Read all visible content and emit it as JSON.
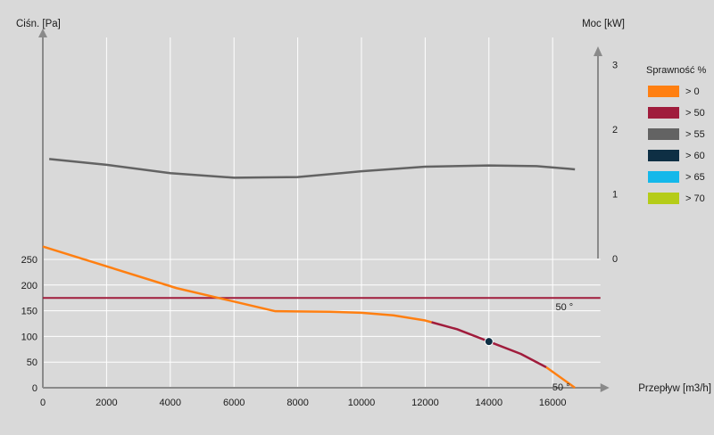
{
  "chart_data": {
    "type": "line",
    "y_title": "Ciśn. [Pa]",
    "y2_title": "Moc [kW]",
    "x_title": "Przepływ [m3/h]",
    "xlim": [
      0,
      17500
    ],
    "ylim": [
      0,
      280
    ],
    "y2lim": [
      0,
      3
    ],
    "x_ticks": [
      0,
      2000,
      4000,
      6000,
      8000,
      10000,
      12000,
      14000,
      16000
    ],
    "y_ticks": [
      0,
      50,
      100,
      150,
      200,
      250
    ],
    "y2_ticks": [
      0,
      1,
      2,
      3
    ],
    "grid": true,
    "legend_title": "Sprawność %",
    "legend_position": "right",
    "legend": [
      {
        "label": "> 0",
        "color": "#ff7f11"
      },
      {
        "label": "> 50",
        "color": "#a01c3c"
      },
      {
        "label": "> 55",
        "color": "#636363"
      },
      {
        "label": "> 60",
        "color": "#0e2f44"
      },
      {
        "label": "> 65",
        "color": "#14b8ea"
      },
      {
        "label": "> 70",
        "color": "#b5cc18"
      }
    ],
    "pressure_curve": {
      "points": [
        [
          0,
          275
        ],
        [
          4200,
          194
        ],
        [
          7300,
          149
        ],
        [
          9000,
          148
        ],
        [
          10000,
          146
        ],
        [
          11000,
          141
        ],
        [
          12000,
          131
        ],
        [
          13000,
          114
        ],
        [
          14000,
          90
        ],
        [
          15000,
          66
        ],
        [
          15800,
          40
        ],
        [
          16700,
          0
        ]
      ],
      "efficiency_segments": [
        {
          "range": [
            0,
            12200
          ],
          "color": "#ff7f11"
        },
        {
          "range": [
            12200,
            15800
          ],
          "color": "#a01c3c"
        },
        {
          "range": [
            15800,
            16700
          ],
          "color": "#ff7f11"
        }
      ]
    },
    "system_line": {
      "pressure": 175,
      "color": "#a01c3c"
    },
    "power_curve": {
      "axis": "y2",
      "color": "#636363",
      "points": [
        [
          200,
          1.54
        ],
        [
          2000,
          1.45
        ],
        [
          4000,
          1.32
        ],
        [
          6000,
          1.25
        ],
        [
          8000,
          1.26
        ],
        [
          10000,
          1.35
        ],
        [
          12000,
          1.42
        ],
        [
          14000,
          1.44
        ],
        [
          15500,
          1.43
        ],
        [
          16700,
          1.38
        ]
      ]
    },
    "operating_point": {
      "x": 14000,
      "y": 90,
      "color": "#0e2f44"
    },
    "annotations": [
      {
        "text": "50 °",
        "x": 16700,
        "y": 168
      },
      {
        "text": "50 °",
        "x": 16600,
        "y": 12
      }
    ]
  }
}
